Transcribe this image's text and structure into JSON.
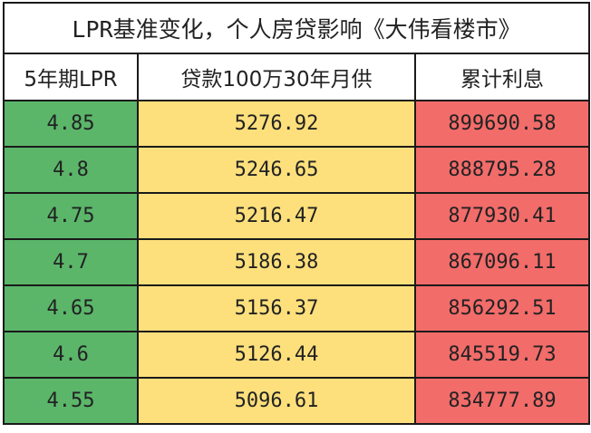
{
  "table": {
    "title": "LPR基准变化，个人房贷影响《大伟看楼市》",
    "headers": [
      "5年期LPR",
      "贷款100万30年月供",
      "累计利息"
    ],
    "rows": [
      {
        "lpr": "4.85",
        "monthly_payment": "5276.92",
        "total_interest": "899690.58"
      },
      {
        "lpr": "4.8",
        "monthly_payment": "5246.65",
        "total_interest": "888795.28"
      },
      {
        "lpr": "4.75",
        "monthly_payment": "5216.47",
        "total_interest": "877930.41"
      },
      {
        "lpr": "4.7",
        "monthly_payment": "5186.38",
        "total_interest": "867096.11"
      },
      {
        "lpr": "4.65",
        "monthly_payment": "5156.37",
        "total_interest": "856292.51"
      },
      {
        "lpr": "4.6",
        "monthly_payment": "5126.44",
        "total_interest": "845519.73"
      },
      {
        "lpr": "4.55",
        "monthly_payment": "5096.61",
        "total_interest": "834777.89"
      }
    ],
    "colors": {
      "lpr_column": "#5bb66a",
      "payment_column": "#fde07c",
      "interest_column": "#f26c6a"
    }
  }
}
